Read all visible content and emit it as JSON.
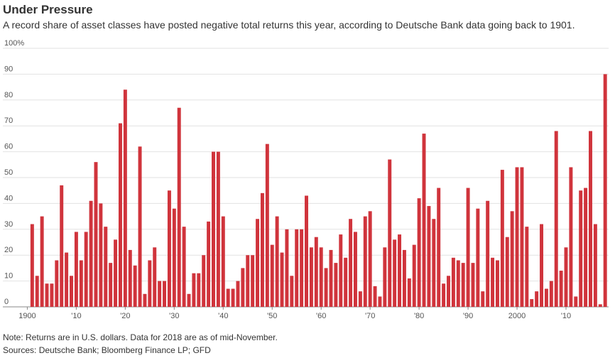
{
  "chart_data": {
    "type": "bar",
    "title": "Under Pressure",
    "subtitle": "A record share of asset classes have posted negative total returns this year, according to Deutsche Bank data going back to 1901.",
    "note": "Note: Returns are in U.S. dollars. Data for 2018 are as of mid-November.",
    "source": "Sources: Deutsche Bank; Bloomberg Finance LP; GFD",
    "color": "#d0343c",
    "grid": true,
    "x": [
      1901,
      1902,
      1903,
      1904,
      1905,
      1906,
      1907,
      1908,
      1909,
      1910,
      1911,
      1912,
      1913,
      1914,
      1915,
      1916,
      1917,
      1918,
      1919,
      1920,
      1921,
      1922,
      1923,
      1924,
      1925,
      1926,
      1927,
      1928,
      1929,
      1930,
      1931,
      1932,
      1933,
      1934,
      1935,
      1936,
      1937,
      1938,
      1939,
      1940,
      1941,
      1942,
      1943,
      1944,
      1945,
      1946,
      1947,
      1948,
      1949,
      1950,
      1951,
      1952,
      1953,
      1954,
      1955,
      1956,
      1957,
      1958,
      1959,
      1960,
      1961,
      1962,
      1963,
      1964,
      1965,
      1966,
      1967,
      1968,
      1969,
      1970,
      1971,
      1972,
      1973,
      1974,
      1975,
      1976,
      1977,
      1978,
      1979,
      1980,
      1981,
      1982,
      1983,
      1984,
      1985,
      1986,
      1987,
      1988,
      1989,
      1990,
      1991,
      1992,
      1993,
      1994,
      1995,
      1996,
      1997,
      1998,
      1999,
      2000,
      2001,
      2002,
      2003,
      2004,
      2005,
      2006,
      2007,
      2008,
      2009,
      2010,
      2011,
      2012,
      2013,
      2014,
      2015,
      2016,
      2017,
      2018
    ],
    "values": [
      32,
      12,
      35,
      9,
      9,
      18,
      47,
      21,
      12,
      29,
      18,
      29,
      41,
      56,
      40,
      31,
      17,
      26,
      71,
      84,
      22,
      16,
      62,
      5,
      18,
      23,
      10,
      10,
      45,
      38,
      77,
      31,
      5,
      13,
      13,
      20,
      33,
      60,
      60,
      35,
      7,
      7,
      10,
      15,
      20,
      20,
      34,
      44,
      63,
      24,
      35,
      21,
      30,
      12,
      30,
      30,
      43,
      23,
      27,
      23,
      15,
      22,
      17,
      28,
      19,
      34,
      29,
      6,
      35,
      37,
      8,
      4,
      23,
      57,
      26,
      28,
      22,
      11,
      24,
      42,
      67,
      39,
      34,
      46,
      9,
      12,
      19,
      18,
      17,
      46,
      17,
      38,
      6,
      41,
      19,
      18,
      53,
      27,
      37,
      54,
      54,
      31,
      3,
      6,
      32,
      7,
      10,
      68,
      14,
      23,
      54,
      4,
      45,
      46,
      68,
      32,
      1,
      90
    ],
    "xlim": [
      1899.5,
      2018.7
    ],
    "xticks": [
      {
        "value": 1900,
        "label": "1900"
      },
      {
        "value": 1910,
        "label": "'10"
      },
      {
        "value": 1920,
        "label": "'20"
      },
      {
        "value": 1930,
        "label": "'30"
      },
      {
        "value": 1940,
        "label": "'40"
      },
      {
        "value": 1950,
        "label": "'50"
      },
      {
        "value": 1960,
        "label": "'60"
      },
      {
        "value": 1970,
        "label": "'70"
      },
      {
        "value": 1980,
        "label": "'80"
      },
      {
        "value": 1990,
        "label": "'90"
      },
      {
        "value": 2000,
        "label": "2000"
      },
      {
        "value": 2010,
        "label": "'10"
      }
    ],
    "ylim": [
      0,
      100
    ],
    "yticks": [
      0,
      10,
      20,
      30,
      40,
      50,
      60,
      70,
      80,
      90,
      {
        "value": 100,
        "label": "100%"
      }
    ]
  }
}
